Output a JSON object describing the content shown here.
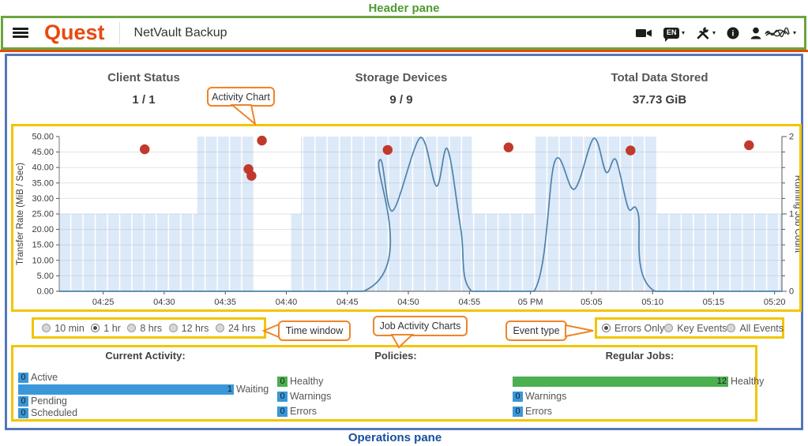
{
  "annotations": {
    "header_pane": "Header pane",
    "operations_pane": "Operations pane",
    "activity_chart": "Activity Chart",
    "time_window": "Time window",
    "job_activity_charts": "Job Activity Charts",
    "event_type": "Event type"
  },
  "header": {
    "brand": "Quest",
    "app_title": "NetVault Backup",
    "language_badge": "EN"
  },
  "stats": [
    {
      "label": "Client Status",
      "value": "1 / 1"
    },
    {
      "label": "Storage Devices",
      "value": "9 / 9"
    },
    {
      "label": "Total Data Stored",
      "value": "37.73 GiB"
    }
  ],
  "time_window": {
    "options": [
      {
        "label": "10 min",
        "selected": false
      },
      {
        "label": "1 hr",
        "selected": true
      },
      {
        "label": "8 hrs",
        "selected": false
      },
      {
        "label": "12 hrs",
        "selected": false
      },
      {
        "label": "24 hrs",
        "selected": false
      }
    ]
  },
  "event_type": {
    "options": [
      {
        "label": "Errors Only",
        "selected": true
      },
      {
        "label": "Key Events",
        "selected": false
      },
      {
        "label": "All Events",
        "selected": false
      }
    ]
  },
  "job_activity": {
    "columns": [
      {
        "title": "Current Activity:",
        "max": 1,
        "items": [
          {
            "label": "Active",
            "value": 0,
            "color": "#3A97D9"
          },
          {
            "label": "Waiting",
            "value": 1,
            "color": "#3A97D9"
          },
          {
            "label": "Pending",
            "value": 0,
            "color": "#3A97D9"
          },
          {
            "label": "Scheduled",
            "value": 0,
            "color": "#3A97D9"
          }
        ]
      },
      {
        "title": "Policies:",
        "max": 1,
        "items": [
          {
            "label": "Healthy",
            "value": 0,
            "color": "#4CAF50"
          },
          {
            "label": "Warnings",
            "value": 0,
            "color": "#3A97D9"
          },
          {
            "label": "Errors",
            "value": 0,
            "color": "#3A97D9"
          }
        ]
      },
      {
        "title": "Regular Jobs:",
        "max": 12,
        "items": [
          {
            "label": "Healthy",
            "value": 12,
            "color": "#4CAF50"
          },
          {
            "label": "Warnings",
            "value": 0,
            "color": "#3A97D9"
          },
          {
            "label": "Errors",
            "value": 0,
            "color": "#3A97D9"
          }
        ]
      }
    ]
  },
  "chart_data": {
    "type": "mixed",
    "x_axis": {
      "domain_minutes": [
        21.4,
        80.6
      ],
      "note": "minutes after 4 PM",
      "ticks": [
        {
          "m": 25,
          "label": "04:25"
        },
        {
          "m": 30,
          "label": "04:30"
        },
        {
          "m": 35,
          "label": "04:35"
        },
        {
          "m": 40,
          "label": "04:40"
        },
        {
          "m": 45,
          "label": "04:45"
        },
        {
          "m": 50,
          "label": "04:50"
        },
        {
          "m": 55,
          "label": "04:55"
        },
        {
          "m": 60,
          "label": "05 PM"
        },
        {
          "m": 65,
          "label": "05:05"
        },
        {
          "m": 70,
          "label": "05:10"
        },
        {
          "m": 75,
          "label": "05:15"
        },
        {
          "m": 80,
          "label": "05:20"
        }
      ]
    },
    "left_axis": {
      "label": "Transfer Rate (MiB / Sec)",
      "min": 0,
      "max": 50,
      "step": 5
    },
    "right_axis": {
      "label": "Running Job Count",
      "min": 0,
      "max": 2,
      "major_step": 1,
      "minor_step": 0.2
    },
    "series": [
      {
        "name": "running-job-count",
        "type": "step-area",
        "axis": "right",
        "fill": "#DCE9F8",
        "stripe": "#FFFFFF",
        "points": [
          [
            21.4,
            1
          ],
          [
            32.7,
            1
          ],
          [
            32.7,
            2
          ],
          [
            37.3,
            2
          ],
          [
            37.3,
            0
          ],
          [
            40.3,
            0
          ],
          [
            40.3,
            1
          ],
          [
            41.2,
            1
          ],
          [
            41.2,
            2
          ],
          [
            55.2,
            2
          ],
          [
            55.2,
            1
          ],
          [
            60.4,
            1
          ],
          [
            60.4,
            2
          ],
          [
            70.4,
            2
          ],
          [
            70.4,
            1
          ],
          [
            80.6,
            1
          ]
        ]
      },
      {
        "name": "transfer-rate",
        "type": "line",
        "axis": "left",
        "color": "#4D82AB",
        "points": [
          [
            21.4,
            0
          ],
          [
            46.3,
            0
          ],
          [
            47.6,
            42
          ],
          [
            48.7,
            26
          ],
          [
            51.0,
            50.5
          ],
          [
            52.3,
            34
          ],
          [
            53.2,
            46
          ],
          [
            54.3,
            20
          ],
          [
            55.2,
            0
          ],
          [
            60.3,
            0
          ],
          [
            62.0,
            42
          ],
          [
            63.6,
            33
          ],
          [
            65.2,
            49.5
          ],
          [
            66.2,
            38.5
          ],
          [
            67.0,
            42.5
          ],
          [
            68.0,
            27
          ],
          [
            68.8,
            25.5
          ],
          [
            70.2,
            0
          ],
          [
            80.6,
            0
          ]
        ]
      },
      {
        "name": "error-events",
        "type": "scatter",
        "axis": "left",
        "color": "#C0392B",
        "radius": 6.2,
        "points": [
          [
            28.4,
            45.9
          ],
          [
            36.9,
            39.5
          ],
          [
            37.15,
            37.3
          ],
          [
            38.0,
            48.7
          ],
          [
            48.3,
            45.7
          ],
          [
            58.2,
            46.5
          ],
          [
            68.2,
            45.5
          ],
          [
            77.9,
            47.2
          ]
        ]
      }
    ]
  },
  "colors": {
    "brand_orange": "#E8490F",
    "header_border_green": "#6CA53C",
    "pane_border_blue": "#5377B9",
    "highlight_yellow": "#F2C500",
    "callout_orange": "#F08428",
    "annotation_green": "#4D9B2F",
    "annotation_blue": "#17509E",
    "bar_blue": "#3A97D9",
    "bar_green": "#4CAF50",
    "line_blue": "#4D82AB",
    "dot_red": "#C0392B",
    "area_blue": "#DCE9F8"
  }
}
